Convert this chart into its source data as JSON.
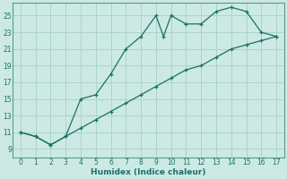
{
  "xlabel": "Humidex (Indice chaleur)",
  "background_color": "#cceae3",
  "grid_color": "#aad4cb",
  "line_color": "#1a7068",
  "spine_color": "#5a9a90",
  "xlim": [
    -0.5,
    17.5
  ],
  "ylim": [
    8.0,
    26.5
  ],
  "xticks": [
    0,
    1,
    2,
    3,
    4,
    5,
    6,
    7,
    8,
    9,
    10,
    11,
    12,
    13,
    14,
    15,
    16,
    17
  ],
  "yticks": [
    9,
    11,
    13,
    15,
    17,
    19,
    21,
    23,
    25
  ],
  "line1_x": [
    0,
    1,
    2,
    3,
    4,
    5,
    6,
    7,
    8,
    9,
    9.5,
    10,
    11,
    12,
    13,
    14,
    15,
    16,
    17
  ],
  "line1_y": [
    11,
    10.5,
    9.5,
    10.5,
    15,
    15.5,
    18,
    21,
    22.5,
    25,
    22.5,
    25,
    24,
    24,
    25.5,
    26,
    25.5,
    23,
    22.5
  ],
  "line2_x": [
    0,
    1,
    2,
    3,
    4,
    5,
    6,
    7,
    8,
    9,
    10,
    11,
    12,
    13,
    14,
    15,
    16,
    17
  ],
  "line2_y": [
    11,
    10.5,
    9.5,
    10.5,
    11.5,
    12.5,
    13.5,
    14.5,
    15.5,
    16.5,
    17.5,
    18.5,
    19,
    20,
    21,
    21.5,
    22,
    22.5
  ]
}
